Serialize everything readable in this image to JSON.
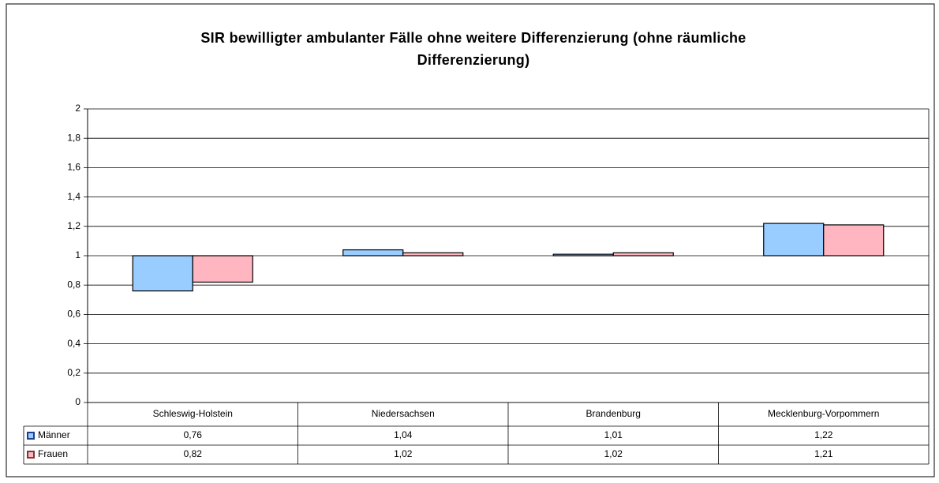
{
  "chart_data": {
    "type": "bar",
    "title": "SIR bewilligter ambulanter Fälle ohne weitere Differenzierung (ohne räumliche Differenzierung)",
    "categories": [
      "Schleswig-Holstein",
      "Niedersachsen",
      "Brandenburg",
      "Mecklenburg-Vorpommern"
    ],
    "series": [
      {
        "name": "Männer",
        "color": "#99ccff",
        "values": [
          0.76,
          1.04,
          1.01,
          1.22
        ],
        "value_labels": [
          "0,76",
          "1,04",
          "1,01",
          "1,22"
        ]
      },
      {
        "name": "Frauen",
        "color": "#ffb6c1",
        "values": [
          0.82,
          1.02,
          1.02,
          1.21
        ],
        "value_labels": [
          "0,82",
          "1,02",
          "1,02",
          "1,21"
        ]
      }
    ],
    "ylim": [
      0,
      2
    ],
    "yticks": [
      0,
      {
        "value": 0.2,
        "label": "0,2"
      },
      {
        "value": 0.4,
        "label": "0,4"
      },
      {
        "value": 0.6,
        "label": "0,6"
      },
      {
        "value": 0.8,
        "label": "0,8"
      },
      1,
      {
        "value": 1.2,
        "label": "1,2"
      },
      {
        "value": 1.4,
        "label": "1,4"
      },
      {
        "value": 1.6,
        "label": "1,6"
      },
      {
        "value": 1.8,
        "label": "1,8"
      },
      2
    ],
    "y_axis_crosses": 1,
    "grid": true,
    "data_table": true
  }
}
